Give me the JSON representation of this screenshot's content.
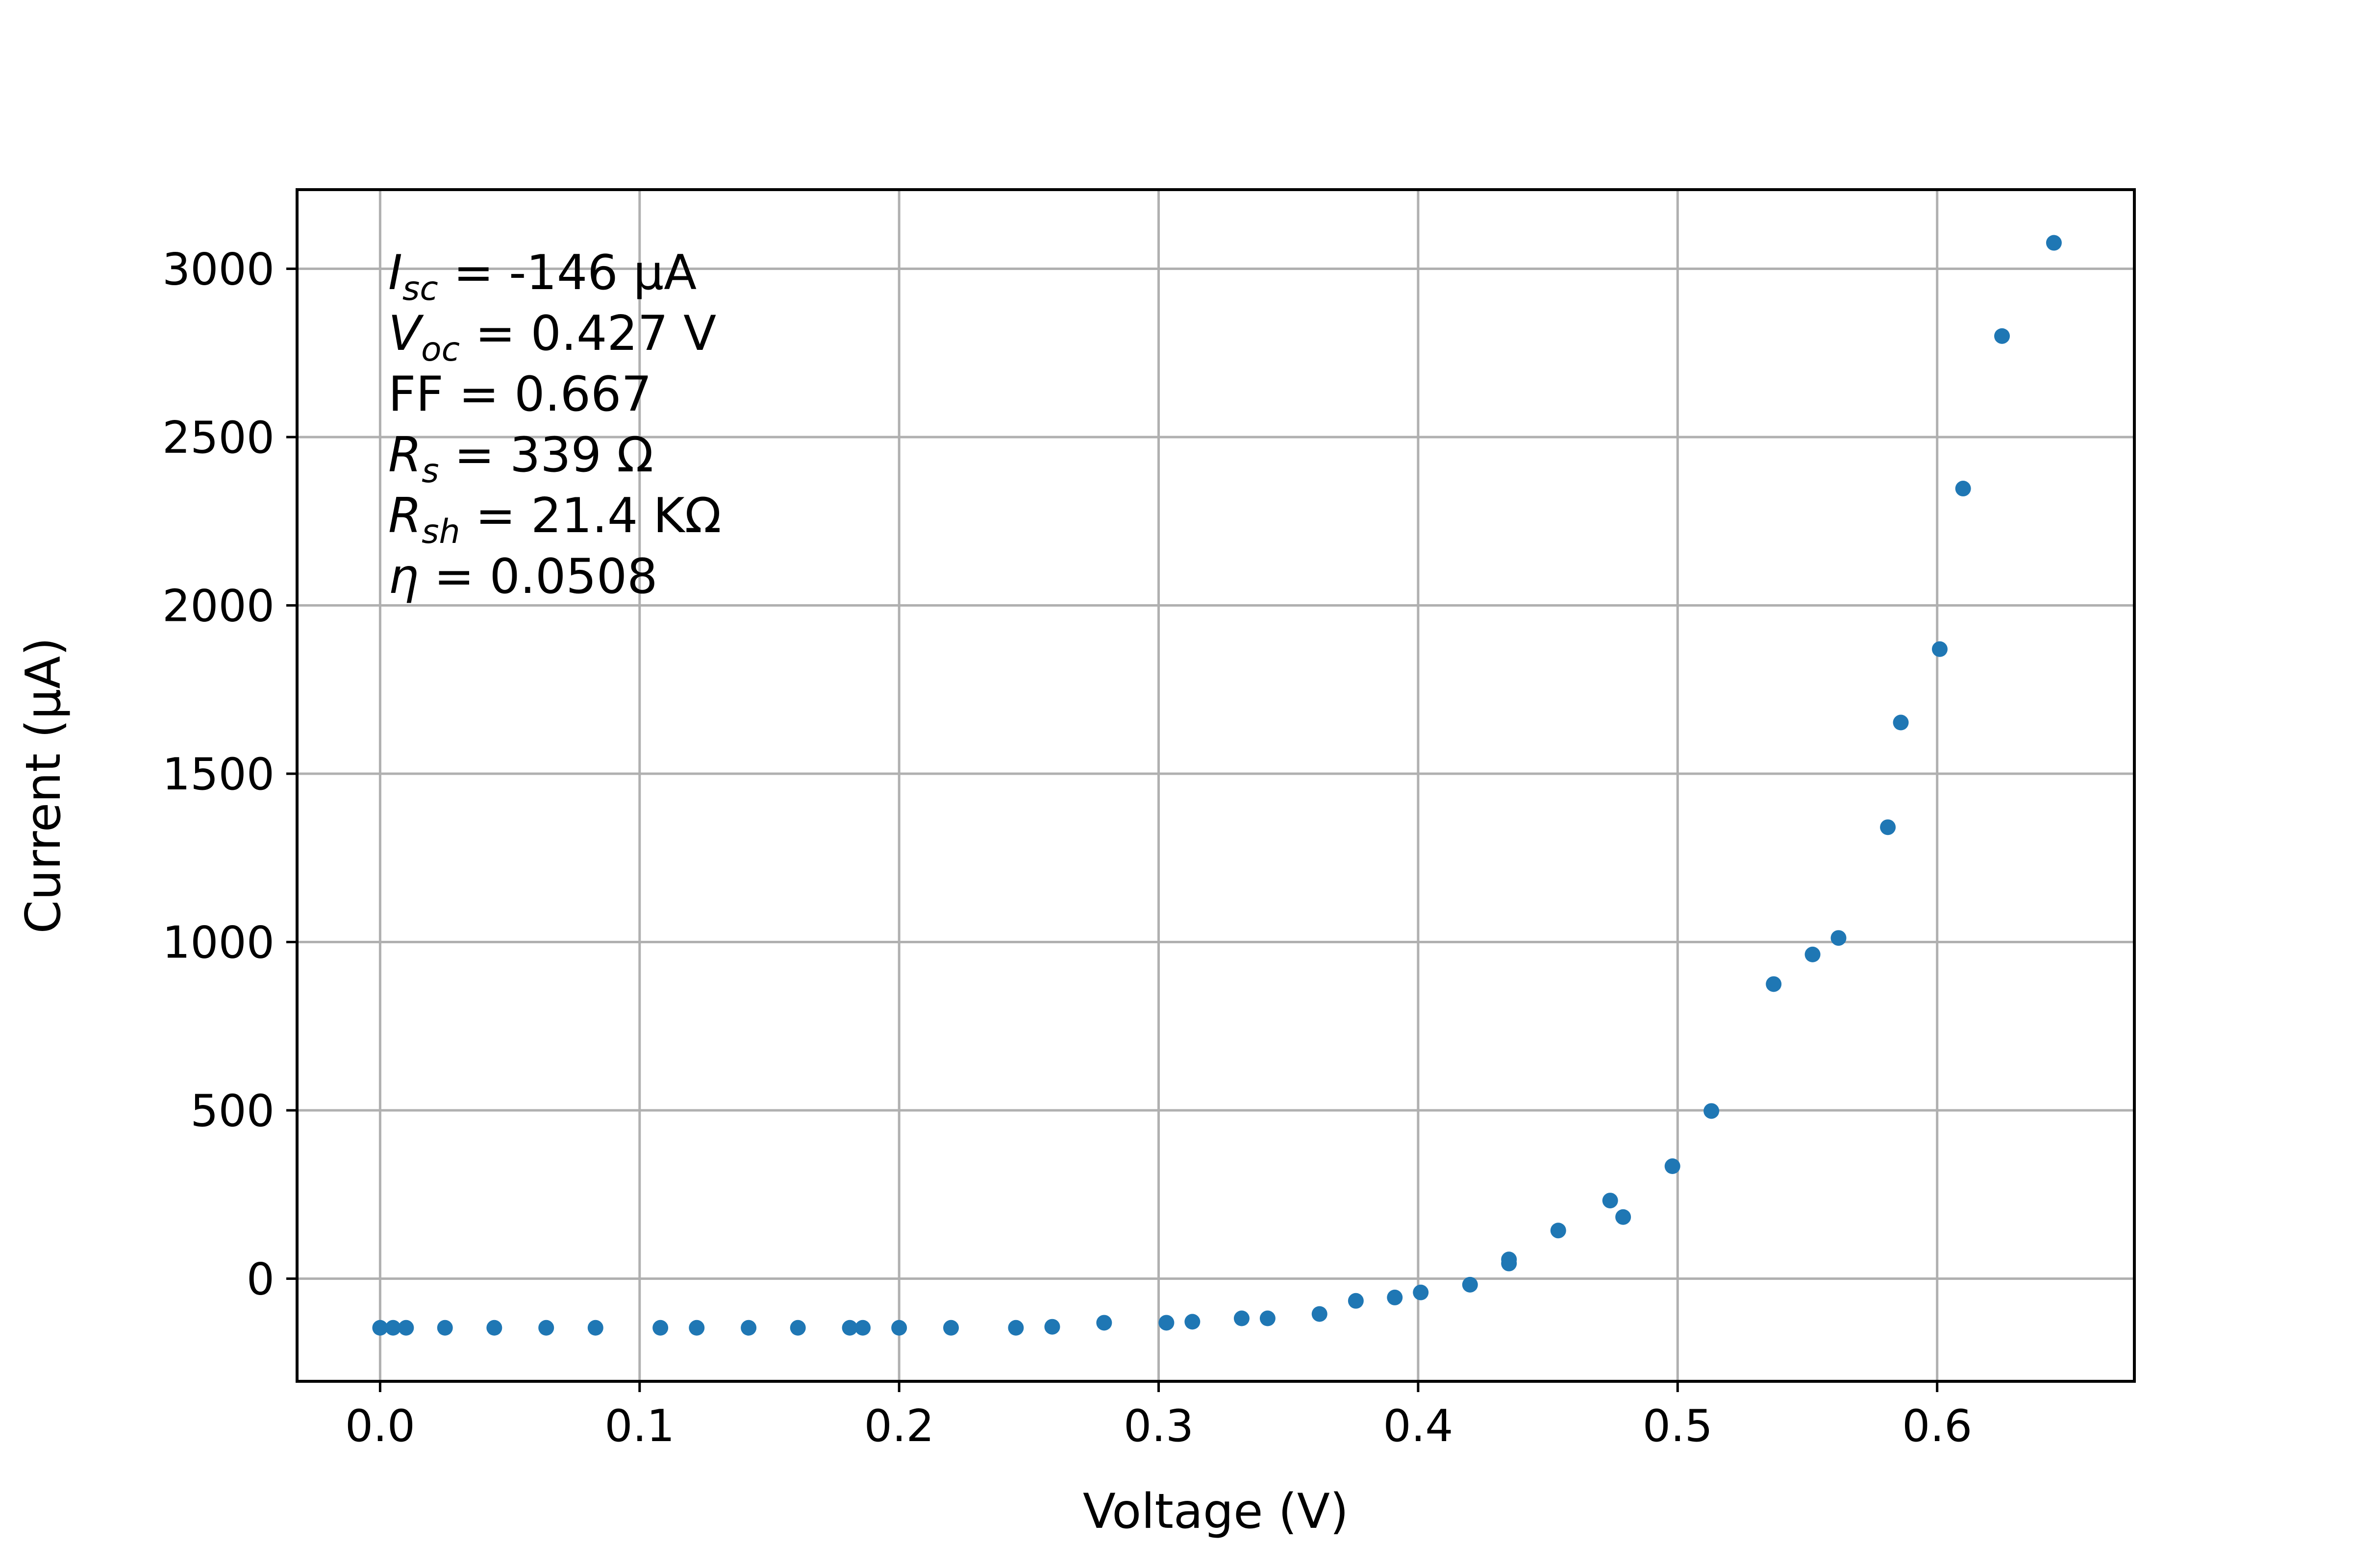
{
  "chart_data": {
    "type": "scatter",
    "xlabel": "Voltage (V)",
    "ylabel": "Current (μA)",
    "xlim": [
      -0.032,
      0.676
    ],
    "ylim": [
      -305,
      3235
    ],
    "xticks": [
      "0.0",
      "0.1",
      "0.2",
      "0.3",
      "0.4",
      "0.5",
      "0.6"
    ],
    "yticks": [
      "0",
      "500",
      "1000",
      "1500",
      "2000",
      "2500",
      "3000"
    ],
    "grid": true,
    "marker_color": "#1f77b4",
    "annotations": [
      {
        "sym": "I",
        "sub": "sc",
        "rest": " = -146 μA"
      },
      {
        "sym": "V",
        "sub": "oc",
        "rest": " = 0.427 V"
      },
      {
        "sym": "",
        "sub": "",
        "rest": "FF = 0.667"
      },
      {
        "sym": "R",
        "sub": "s",
        "rest": " = 339 Ω"
      },
      {
        "sym": "R",
        "sub": "sh",
        "rest": " = 21.4 KΩ"
      },
      {
        "sym": "η",
        "sub": "",
        "rest": " = 0.0508"
      }
    ],
    "points": [
      {
        "x": 0.0,
        "y": -146
      },
      {
        "x": 0.005,
        "y": -146
      },
      {
        "x": 0.01,
        "y": -146
      },
      {
        "x": 0.025,
        "y": -146
      },
      {
        "x": 0.044,
        "y": -146
      },
      {
        "x": 0.064,
        "y": -146
      },
      {
        "x": 0.083,
        "y": -146
      },
      {
        "x": 0.108,
        "y": -146
      },
      {
        "x": 0.122,
        "y": -146
      },
      {
        "x": 0.142,
        "y": -146
      },
      {
        "x": 0.161,
        "y": -146
      },
      {
        "x": 0.181,
        "y": -146
      },
      {
        "x": 0.186,
        "y": -146
      },
      {
        "x": 0.2,
        "y": -146
      },
      {
        "x": 0.22,
        "y": -146
      },
      {
        "x": 0.245,
        "y": -146
      },
      {
        "x": 0.259,
        "y": -143
      },
      {
        "x": 0.279,
        "y": -131
      },
      {
        "x": 0.303,
        "y": -131
      },
      {
        "x": 0.313,
        "y": -128
      },
      {
        "x": 0.332,
        "y": -118
      },
      {
        "x": 0.342,
        "y": -118
      },
      {
        "x": 0.362,
        "y": -105
      },
      {
        "x": 0.376,
        "y": -66
      },
      {
        "x": 0.391,
        "y": -56
      },
      {
        "x": 0.401,
        "y": -41
      },
      {
        "x": 0.42,
        "y": -18
      },
      {
        "x": 0.435,
        "y": 45
      },
      {
        "x": 0.435,
        "y": 57
      },
      {
        "x": 0.454,
        "y": 143
      },
      {
        "x": 0.474,
        "y": 232
      },
      {
        "x": 0.479,
        "y": 183
      },
      {
        "x": 0.498,
        "y": 334
      },
      {
        "x": 0.513,
        "y": 498
      },
      {
        "x": 0.537,
        "y": 875
      },
      {
        "x": 0.552,
        "y": 963
      },
      {
        "x": 0.562,
        "y": 1012
      },
      {
        "x": 0.581,
        "y": 1341
      },
      {
        "x": 0.586,
        "y": 1652
      },
      {
        "x": 0.601,
        "y": 1870
      },
      {
        "x": 0.61,
        "y": 2347
      },
      {
        "x": 0.625,
        "y": 2800
      },
      {
        "x": 0.645,
        "y": 3077
      }
    ]
  }
}
